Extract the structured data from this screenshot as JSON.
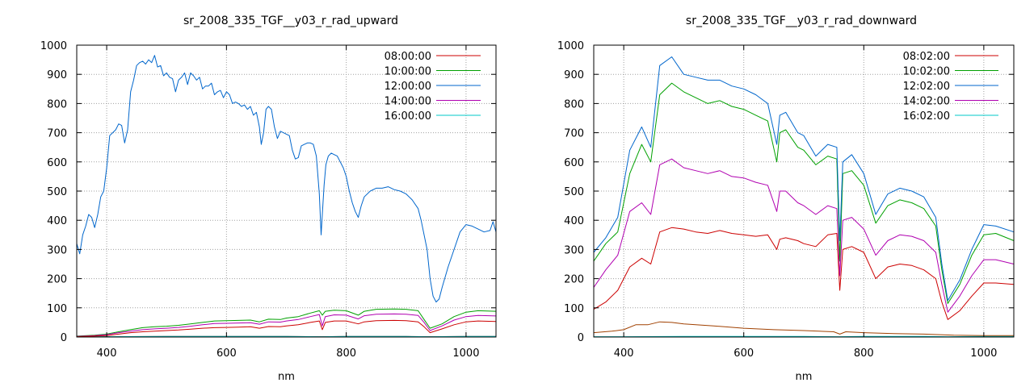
{
  "chart_data": [
    {
      "type": "line",
      "title": "sr_2008_335_TGF__y03_r_rad_upward",
      "xlabel": "nm",
      "ylabel": "",
      "xlim": [
        350,
        1050
      ],
      "ylim": [
        0,
        1000
      ],
      "xticks": [
        400,
        600,
        800,
        1000
      ],
      "yticks": [
        0,
        100,
        200,
        300,
        400,
        500,
        600,
        700,
        800,
        900,
        1000
      ],
      "grid": true,
      "legend_position": "top-right",
      "series": [
        {
          "name": "08:00:00",
          "color": "#cc0000",
          "x": [
            350,
            400,
            500,
            600,
            700,
            760,
            800,
            900,
            940,
            1000,
            1050
          ],
          "y": [
            0,
            1,
            2,
            2,
            2,
            1,
            2,
            2,
            1,
            2,
            2
          ]
        },
        {
          "name": "10:00:00",
          "color": "#00a000",
          "x": [
            350,
            380,
            400,
            420,
            440,
            460,
            480,
            500,
            520,
            540,
            560,
            580,
            600,
            620,
            640,
            655,
            670,
            690,
            700,
            720,
            740,
            755,
            760,
            765,
            780,
            800,
            820,
            830,
            850,
            880,
            900,
            920,
            930,
            940,
            960,
            980,
            1000,
            1020,
            1050
          ],
          "y": [
            3,
            6,
            10,
            18,
            25,
            32,
            35,
            37,
            40,
            45,
            50,
            55,
            56,
            57,
            58,
            52,
            61,
            60,
            65,
            70,
            82,
            90,
            75,
            88,
            92,
            90,
            75,
            88,
            95,
            96,
            95,
            90,
            60,
            30,
            45,
            70,
            85,
            90,
            88
          ]
        },
        {
          "name": "12:00:00",
          "color": "#0066cc",
          "x": [
            350,
            355,
            360,
            365,
            370,
            375,
            380,
            385,
            390,
            395,
            400,
            405,
            410,
            415,
            420,
            425,
            430,
            435,
            440,
            445,
            450,
            455,
            460,
            465,
            470,
            475,
            480,
            485,
            490,
            495,
            500,
            505,
            510,
            515,
            520,
            525,
            530,
            535,
            540,
            545,
            550,
            555,
            560,
            565,
            570,
            575,
            580,
            585,
            590,
            595,
            600,
            605,
            610,
            615,
            620,
            625,
            630,
            635,
            640,
            645,
            650,
            655,
            658,
            662,
            666,
            670,
            675,
            680,
            685,
            690,
            695,
            700,
            705,
            710,
            715,
            720,
            725,
            730,
            735,
            740,
            745,
            750,
            755,
            758,
            760,
            763,
            766,
            770,
            775,
            780,
            785,
            790,
            795,
            800,
            805,
            810,
            815,
            820,
            825,
            830,
            840,
            850,
            860,
            870,
            880,
            890,
            900,
            910,
            920,
            925,
            930,
            935,
            940,
            945,
            950,
            955,
            960,
            970,
            980,
            990,
            1000,
            1010,
            1020,
            1030,
            1040,
            1045,
            1050
          ],
          "y": [
            320,
            285,
            350,
            380,
            420,
            410,
            375,
            420,
            480,
            500,
            580,
            690,
            700,
            710,
            730,
            725,
            665,
            710,
            840,
            880,
            930,
            940,
            945,
            935,
            950,
            940,
            965,
            925,
            930,
            895,
            905,
            890,
            885,
            840,
            880,
            890,
            905,
            865,
            905,
            895,
            880,
            890,
            850,
            860,
            860,
            870,
            830,
            840,
            845,
            820,
            840,
            830,
            800,
            805,
            800,
            790,
            795,
            780,
            790,
            760,
            770,
            720,
            660,
            700,
            780,
            790,
            780,
            720,
            680,
            705,
            700,
            695,
            690,
            640,
            610,
            615,
            655,
            660,
            665,
            665,
            660,
            620,
            490,
            350,
            420,
            520,
            590,
            620,
            630,
            625,
            620,
            600,
            580,
            550,
            500,
            460,
            430,
            410,
            450,
            480,
            500,
            510,
            510,
            515,
            505,
            500,
            490,
            470,
            440,
            400,
            350,
            300,
            200,
            140,
            120,
            130,
            170,
            240,
            300,
            360,
            385,
            380,
            370,
            360,
            365,
            395,
            360
          ]
        },
        {
          "name": "14:00:00",
          "color": "#b000b0",
          "x": [
            350,
            380,
            400,
            420,
            440,
            460,
            480,
            500,
            520,
            540,
            560,
            580,
            600,
            620,
            640,
            655,
            670,
            690,
            700,
            720,
            740,
            755,
            760,
            765,
            780,
            800,
            820,
            830,
            850,
            880,
            900,
            920,
            930,
            940,
            960,
            980,
            1000,
            1020,
            1050
          ],
          "y": [
            2,
            5,
            8,
            15,
            20,
            25,
            28,
            30,
            33,
            37,
            42,
            46,
            47,
            48,
            49,
            44,
            52,
            51,
            55,
            60,
            70,
            77,
            38,
            70,
            76,
            75,
            62,
            73,
            78,
            79,
            78,
            74,
            50,
            22,
            38,
            58,
            70,
            74,
            72
          ]
        },
        {
          "name": "16:00:00",
          "color": "#00c8c8",
          "x": [
            350,
            400,
            500,
            600,
            700,
            760,
            800,
            900,
            940,
            1000,
            1050
          ],
          "y": [
            1,
            1,
            2,
            2,
            2,
            1,
            2,
            2,
            1,
            2,
            2
          ]
        },
        {
          "name": "",
          "color": "#cc0000",
          "x": [
            350,
            380,
            400,
            420,
            440,
            460,
            480,
            500,
            520,
            540,
            560,
            580,
            600,
            620,
            640,
            655,
            670,
            690,
            700,
            720,
            740,
            755,
            760,
            765,
            780,
            800,
            820,
            830,
            850,
            880,
            900,
            920,
            930,
            940,
            960,
            980,
            1000,
            1020,
            1050
          ],
          "y": [
            1,
            3,
            5,
            10,
            15,
            18,
            20,
            22,
            24,
            27,
            30,
            32,
            33,
            34,
            35,
            30,
            36,
            35,
            38,
            42,
            50,
            55,
            25,
            50,
            55,
            55,
            45,
            52,
            56,
            57,
            56,
            52,
            35,
            15,
            28,
            42,
            52,
            55,
            53
          ]
        }
      ]
    },
    {
      "type": "line",
      "title": "sr_2008_335_TGF__y03_r_rad_downward",
      "xlabel": "nm",
      "ylabel": "",
      "xlim": [
        350,
        1050
      ],
      "ylim": [
        0,
        1000
      ],
      "xticks": [
        400,
        600,
        800,
        1000
      ],
      "yticks": [
        0,
        100,
        200,
        300,
        400,
        500,
        600,
        700,
        800,
        900,
        1000
      ],
      "grid": true,
      "legend_position": "top-right",
      "series": [
        {
          "name": "08:02:00",
          "color": "#cc0000",
          "x": [
            350,
            370,
            390,
            410,
            430,
            445,
            460,
            480,
            500,
            520,
            540,
            560,
            580,
            600,
            620,
            640,
            655,
            660,
            670,
            690,
            700,
            720,
            740,
            755,
            760,
            765,
            780,
            800,
            820,
            840,
            860,
            880,
            900,
            920,
            930,
            940,
            960,
            980,
            1000,
            1020,
            1050
          ],
          "y": [
            95,
            120,
            160,
            240,
            270,
            250,
            360,
            375,
            370,
            360,
            355,
            365,
            355,
            350,
            345,
            350,
            300,
            335,
            340,
            330,
            320,
            310,
            350,
            355,
            160,
            300,
            310,
            290,
            200,
            240,
            250,
            245,
            230,
            200,
            120,
            60,
            90,
            140,
            185,
            185,
            180
          ]
        },
        {
          "name": "10:02:00",
          "color": "#00a000",
          "x": [
            350,
            370,
            390,
            410,
            430,
            445,
            460,
            480,
            500,
            520,
            540,
            560,
            580,
            600,
            620,
            640,
            655,
            660,
            670,
            690,
            700,
            720,
            740,
            755,
            760,
            765,
            780,
            800,
            820,
            840,
            860,
            880,
            900,
            920,
            930,
            940,
            960,
            980,
            1000,
            1020,
            1050
          ],
          "y": [
            260,
            320,
            360,
            560,
            660,
            600,
            830,
            870,
            840,
            820,
            800,
            810,
            790,
            780,
            760,
            740,
            600,
            700,
            710,
            650,
            640,
            590,
            620,
            610,
            260,
            560,
            570,
            520,
            390,
            450,
            470,
            460,
            440,
            380,
            230,
            115,
            180,
            280,
            350,
            355,
            330
          ]
        },
        {
          "name": "12:02:00",
          "color": "#0066cc",
          "x": [
            350,
            370,
            390,
            410,
            430,
            445,
            460,
            480,
            500,
            520,
            540,
            560,
            580,
            600,
            620,
            640,
            655,
            660,
            670,
            690,
            700,
            720,
            740,
            755,
            760,
            765,
            780,
            800,
            820,
            840,
            860,
            880,
            900,
            920,
            930,
            940,
            960,
            980,
            1000,
            1020,
            1050
          ],
          "y": [
            290,
            340,
            410,
            640,
            720,
            650,
            930,
            960,
            900,
            890,
            880,
            880,
            860,
            850,
            830,
            800,
            660,
            760,
            770,
            700,
            690,
            620,
            660,
            650,
            330,
            600,
            625,
            560,
            420,
            490,
            510,
            500,
            480,
            410,
            250,
            125,
            195,
            300,
            385,
            380,
            360
          ]
        },
        {
          "name": "14:02:00",
          "color": "#b000b0",
          "x": [
            350,
            370,
            390,
            410,
            430,
            445,
            460,
            480,
            500,
            520,
            540,
            560,
            580,
            600,
            620,
            640,
            655,
            660,
            670,
            690,
            700,
            720,
            740,
            755,
            760,
            765,
            780,
            800,
            820,
            840,
            860,
            880,
            900,
            920,
            930,
            940,
            960,
            980,
            1000,
            1020,
            1050
          ],
          "y": [
            170,
            230,
            280,
            430,
            460,
            420,
            590,
            610,
            580,
            570,
            560,
            570,
            550,
            545,
            530,
            520,
            430,
            500,
            500,
            460,
            450,
            420,
            450,
            440,
            210,
            400,
            410,
            370,
            280,
            330,
            350,
            345,
            330,
            290,
            180,
            85,
            140,
            210,
            265,
            265,
            250
          ]
        },
        {
          "name": "16:02:00",
          "color": "#00c8c8",
          "x": [
            350,
            400,
            500,
            600,
            700,
            760,
            800,
            900,
            940,
            1000,
            1050
          ],
          "y": [
            1,
            1,
            2,
            2,
            2,
            1,
            2,
            2,
            1,
            2,
            2
          ]
        },
        {
          "name": "",
          "color": "#a04000",
          "x": [
            350,
            380,
            400,
            420,
            440,
            460,
            480,
            500,
            550,
            600,
            650,
            700,
            750,
            760,
            770,
            800,
            850,
            900,
            950,
            1000,
            1050
          ],
          "y": [
            15,
            20,
            25,
            42,
            42,
            52,
            50,
            45,
            38,
            30,
            25,
            22,
            18,
            10,
            18,
            15,
            12,
            10,
            6,
            5,
            5
          ]
        }
      ]
    }
  ]
}
